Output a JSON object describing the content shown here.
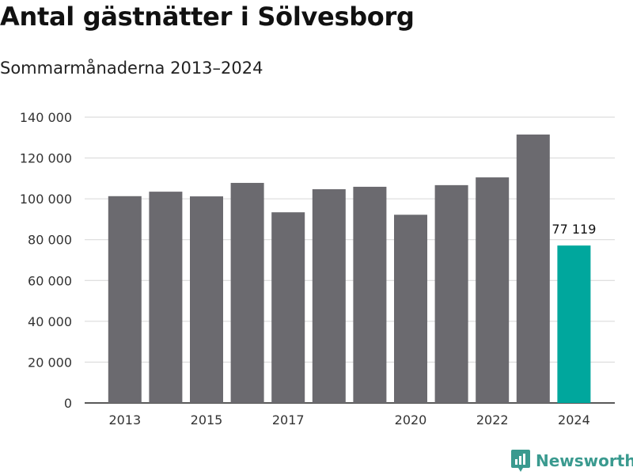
{
  "title": "Antal gästnätter i Sölvesborg",
  "subtitle": "Sommarmånaderna 2013–2024",
  "colors": {
    "bar": "#6b6a6f",
    "highlight": "#00a79d",
    "grid": "#d6d6d6",
    "brand": "#3a9a8f"
  },
  "brand": {
    "name": "Newsworthy",
    "icon": "newsworthy-logo-icon"
  },
  "chart_data": {
    "type": "bar",
    "categories": [
      "2013",
      "2014",
      "2015",
      "2016",
      "2017",
      "2018",
      "2019",
      "2020",
      "2021",
      "2022",
      "2023",
      "2024"
    ],
    "values": [
      101300,
      103500,
      101200,
      107800,
      93400,
      104700,
      105900,
      92200,
      106700,
      110500,
      131500,
      77119
    ],
    "highlight_index": 11,
    "data_labels": [
      {
        "index": 11,
        "text": "77 119"
      }
    ],
    "x_tick_labels": [
      "2013",
      "2015",
      "2017",
      "2020",
      "2022",
      "2024"
    ],
    "y_tick_labels": [
      "0",
      "20 000",
      "40 000",
      "60 000",
      "80 000",
      "100 000",
      "120 000",
      "140 000"
    ],
    "y_ticks": [
      0,
      20000,
      40000,
      60000,
      80000,
      100000,
      120000,
      140000
    ],
    "ylim": [
      0,
      140000
    ],
    "grid": true,
    "xlabel": "",
    "ylabel": ""
  }
}
